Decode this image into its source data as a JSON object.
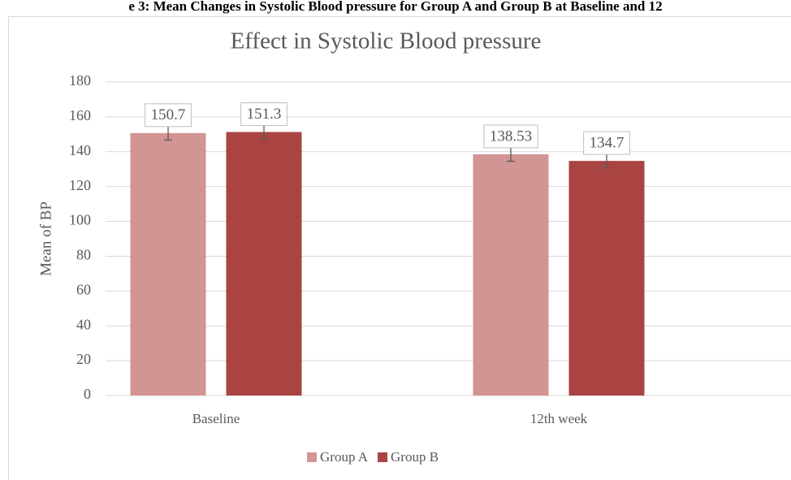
{
  "header": "e 3: Mean Changes in Systolic Blood pressure for Group A and Group B at Baseline and 12",
  "chart_data": {
    "type": "bar",
    "title": "Effect in Systolic Blood pressure",
    "y_label": "Mean of BP",
    "categories": [
      "Baseline",
      "12th week"
    ],
    "series": [
      {
        "name": "Group A",
        "color": "#d39494",
        "values": [
          150.7,
          138.53
        ],
        "errors": [
          4,
          4
        ]
      },
      {
        "name": "Group B",
        "color": "#a94442",
        "values": [
          151.3,
          134.7
        ],
        "errors": [
          4,
          4
        ]
      }
    ],
    "ylim": [
      0,
      180
    ],
    "yticks": [
      0,
      20,
      40,
      60,
      80,
      100,
      120,
      140,
      160,
      180
    ],
    "grid": true,
    "legend": "bottom"
  }
}
